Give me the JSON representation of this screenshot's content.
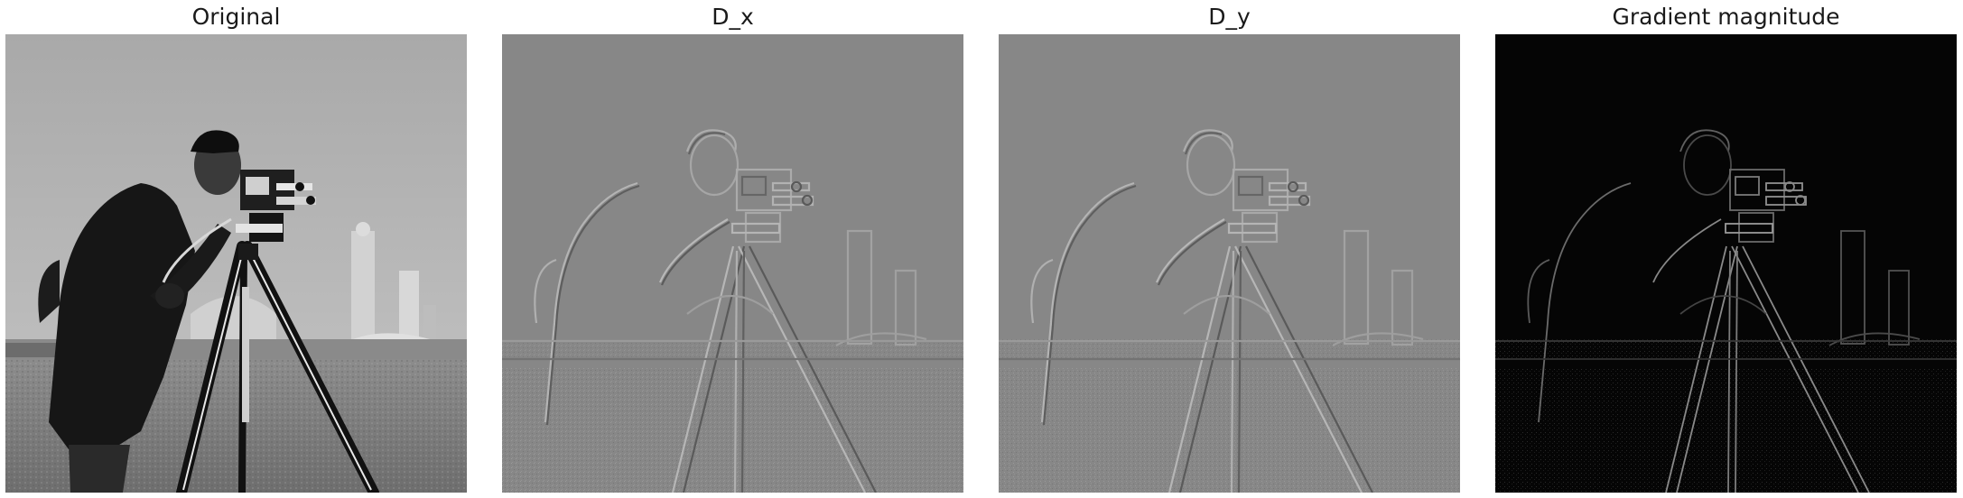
{
  "figure": {
    "panels": [
      {
        "title": "Original",
        "kind": "original"
      },
      {
        "title": "D_x",
        "kind": "dx"
      },
      {
        "title": "D_y",
        "kind": "dy"
      },
      {
        "title": "Gradient magnitude",
        "kind": "magnitude"
      }
    ]
  }
}
